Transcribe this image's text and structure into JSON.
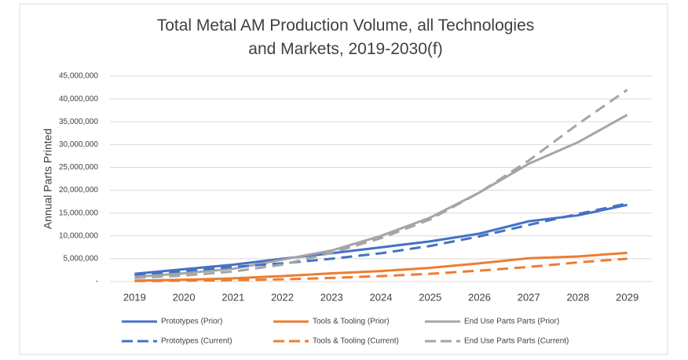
{
  "chart_data": {
    "type": "line",
    "title": "Total Metal AM Production Volume, all Technologies and Markets, 2019-2030(f)",
    "y_label": "Annual Parts Printed",
    "categories": [
      "2019",
      "2020",
      "2021",
      "2022",
      "2023",
      "2024",
      "2025",
      "2026",
      "2027",
      "2028",
      "2029"
    ],
    "ylim": [
      0,
      45000000
    ],
    "yticks": [
      {
        "value": 0,
        "label": "-"
      },
      {
        "value": 5000000,
        "label": "5,000,000"
      },
      {
        "value": 10000000,
        "label": "10,000,000"
      },
      {
        "value": 15000000,
        "label": "15,000,000"
      },
      {
        "value": 20000000,
        "label": "20,000,000"
      },
      {
        "value": 25000000,
        "label": "25,000,000"
      },
      {
        "value": 30000000,
        "label": "30,000,000"
      },
      {
        "value": 35000000,
        "label": "35,000,000"
      },
      {
        "value": 40000000,
        "label": "40,000,000"
      },
      {
        "value": 45000000,
        "label": "45,000,000"
      }
    ],
    "grid": true,
    "legend": "bottom",
    "series": [
      {
        "name": "Prototypes (Prior)",
        "color": "#4472c4",
        "style": "solid",
        "values": [
          1700000,
          2700000,
          3700000,
          5000000,
          6200000,
          7500000,
          8800000,
          10500000,
          13200000,
          14500000,
          16800000
        ]
      },
      {
        "name": "Tools & Tooling (Prior)",
        "color": "#ed7d31",
        "style": "solid",
        "values": [
          200000,
          400000,
          700000,
          1200000,
          1800000,
          2300000,
          3000000,
          4000000,
          5100000,
          5500000,
          6300000
        ]
      },
      {
        "name": "End Use Parts Parts (Prior)",
        "color": "#a5a5a5",
        "style": "solid",
        "values": [
          1000000,
          1800000,
          2800000,
          4800000,
          6800000,
          10000000,
          14000000,
          19500000,
          25800000,
          30500000,
          36500000
        ]
      },
      {
        "name": "Prototypes (Current)",
        "color": "#4472c4",
        "style": "dashed",
        "values": [
          1500000,
          2300000,
          3200000,
          4000000,
          5000000,
          6200000,
          7800000,
          9900000,
          12400000,
          14800000,
          17100000
        ]
      },
      {
        "name": "Tools & Tooling (Current)",
        "color": "#ed7d31",
        "style": "dashed",
        "values": [
          100000,
          200000,
          300000,
          500000,
          800000,
          1200000,
          1700000,
          2400000,
          3200000,
          4200000,
          5000000
        ]
      },
      {
        "name": "End Use Parts Parts (Current)",
        "color": "#a5a5a5",
        "style": "dashed",
        "values": [
          800000,
          1300000,
          2200000,
          3700000,
          6300000,
          9500000,
          13600000,
          19500000,
          26500000,
          34500000,
          42000000
        ]
      }
    ]
  }
}
